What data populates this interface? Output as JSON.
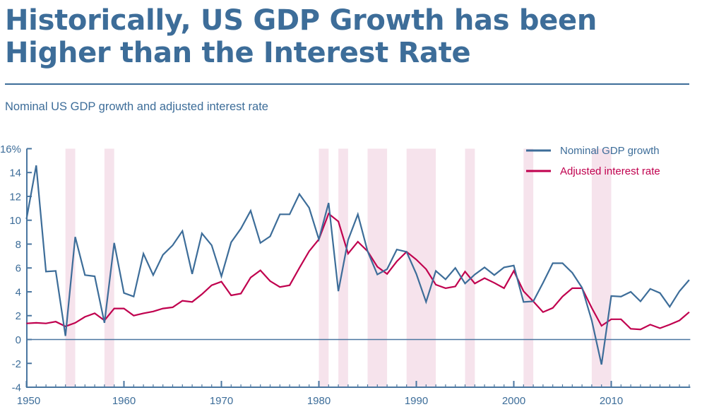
{
  "title": {
    "line1": "Historically, US GDP Growth has been",
    "line2": "Higher than the Interest Rate"
  },
  "subtitle": "Nominal US GDP growth and adjusted interest rate",
  "colors": {
    "title": "#3d6d99",
    "gdp": "#3d6d99",
    "interest": "#c0004e",
    "shade": "#f6e3ec",
    "axis": "#4a76a0"
  },
  "chart_data": {
    "type": "line",
    "title": "Nominal US GDP growth and adjusted interest rate",
    "xlabel": "",
    "ylabel": "",
    "xlim": [
      1950,
      2018
    ],
    "ylim": [
      -4,
      16
    ],
    "y_ticks": [
      -4,
      -2,
      0,
      2,
      4,
      6,
      8,
      10,
      12,
      14,
      16
    ],
    "y_tick_labels": [
      "-4",
      "-2",
      "0",
      "2",
      "4",
      "6",
      "8",
      "10",
      "12",
      "14",
      "16%"
    ],
    "x_major_ticks": [
      1950,
      1960,
      1970,
      1980,
      1990,
      2000,
      2010
    ],
    "x_tick_labels": [
      "1950",
      "1960",
      "1970",
      "1980",
      "1990",
      "2000",
      "2010"
    ],
    "grid": false,
    "zero_line": true,
    "legend_position": "top-right",
    "x": [
      1950,
      1951,
      1952,
      1953,
      1954,
      1955,
      1956,
      1957,
      1958,
      1959,
      1960,
      1961,
      1962,
      1963,
      1964,
      1965,
      1966,
      1967,
      1968,
      1969,
      1970,
      1971,
      1972,
      1973,
      1974,
      1975,
      1976,
      1977,
      1978,
      1979,
      1980,
      1981,
      1982,
      1983,
      1984,
      1985,
      1986,
      1987,
      1988,
      1989,
      1990,
      1991,
      1992,
      1993,
      1994,
      1995,
      1996,
      1997,
      1998,
      1999,
      2000,
      2001,
      2002,
      2003,
      2004,
      2005,
      2006,
      2007,
      2008,
      2009,
      2010,
      2011,
      2012,
      2013,
      2014,
      2015,
      2016,
      2017,
      2018
    ],
    "series": [
      {
        "name": "Nominal GDP growth",
        "color": "#3d6d99",
        "values": [
          10.1,
          14.6,
          5.7,
          5.75,
          0.3,
          8.6,
          5.4,
          5.3,
          1.4,
          8.1,
          3.9,
          3.6,
          7.2,
          5.4,
          7.1,
          7.9,
          9.1,
          5.5,
          8.9,
          7.9,
          5.3,
          8.15,
          9.3,
          10.8,
          8.1,
          8.65,
          10.5,
          10.5,
          12.2,
          11.05,
          8.4,
          11.45,
          4.05,
          8.35,
          10.5,
          7.4,
          5.45,
          5.9,
          7.55,
          7.35,
          5.5,
          3.15,
          5.75,
          5.05,
          6.0,
          4.7,
          5.45,
          6.05,
          5.4,
          6.05,
          6.2,
          3.15,
          3.2,
          4.75,
          6.4,
          6.4,
          5.6,
          4.35,
          1.6,
          -2.1,
          3.65,
          3.6,
          4.0,
          3.2,
          4.25,
          3.9,
          2.75,
          4.05,
          5.0
        ]
      },
      {
        "name": "Adjusted interest rate",
        "color": "#c0004e",
        "values": [
          1.35,
          1.4,
          1.35,
          1.5,
          1.1,
          1.4,
          1.9,
          2.2,
          1.6,
          2.6,
          2.6,
          2.0,
          2.2,
          2.35,
          2.6,
          2.7,
          3.25,
          3.15,
          3.8,
          4.55,
          4.85,
          3.7,
          3.85,
          5.2,
          5.8,
          4.9,
          4.4,
          4.55,
          6.0,
          7.4,
          8.4,
          10.55,
          9.9,
          7.2,
          8.2,
          7.4,
          6.1,
          5.5,
          6.55,
          7.35,
          6.7,
          5.9,
          4.6,
          4.3,
          4.45,
          5.7,
          4.7,
          5.15,
          4.75,
          4.3,
          5.75,
          4.05,
          3.2,
          2.3,
          2.65,
          3.6,
          4.3,
          4.3,
          2.65,
          1.15,
          1.7,
          1.7,
          0.9,
          0.85,
          1.25,
          0.95,
          1.25,
          1.6,
          2.3
        ]
      }
    ],
    "shaded_periods": [
      [
        1954,
        1955
      ],
      [
        1958,
        1959
      ],
      [
        1980,
        1981
      ],
      [
        1982,
        1983
      ],
      [
        1985,
        1987
      ],
      [
        1989,
        1992
      ],
      [
        1995,
        1996
      ],
      [
        2001,
        2002
      ],
      [
        2008,
        2010
      ]
    ]
  }
}
